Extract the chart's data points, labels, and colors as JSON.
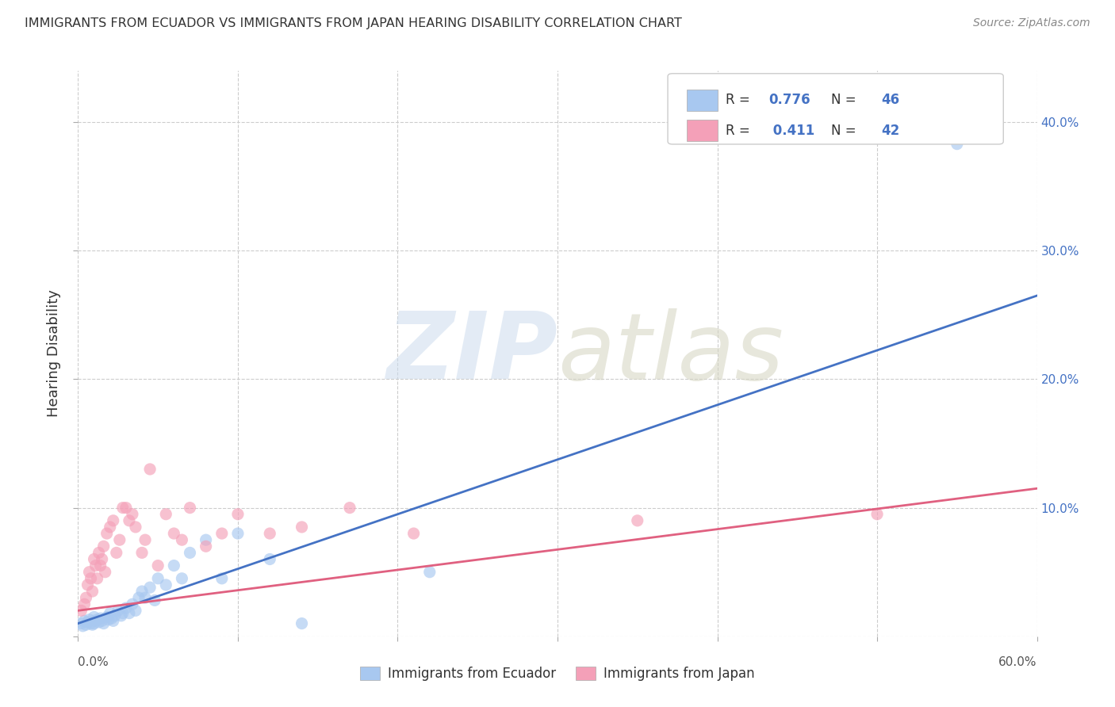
{
  "title": "IMMIGRANTS FROM ECUADOR VS IMMIGRANTS FROM JAPAN HEARING DISABILITY CORRELATION CHART",
  "source": "Source: ZipAtlas.com",
  "ylabel": "Hearing Disability",
  "xlim": [
    0.0,
    0.6
  ],
  "ylim": [
    0.0,
    0.44
  ],
  "xtick_positions": [
    0.0,
    0.1,
    0.2,
    0.3,
    0.4,
    0.5,
    0.6
  ],
  "ytick_positions": [
    0.0,
    0.1,
    0.2,
    0.3,
    0.4
  ],
  "right_yticklabels": [
    "",
    "10.0%",
    "20.0%",
    "30.0%",
    "40.0%"
  ],
  "bottom_xtick_left": "0.0%",
  "bottom_xtick_right": "60.0%",
  "legend_labels_bottom": [
    "Immigrants from Ecuador",
    "Immigrants from Japan"
  ],
  "ecuador_color": "#a8c8f0",
  "japan_color": "#f4a0b8",
  "ecuador_line_color": "#4472c4",
  "japan_line_color": "#e06080",
  "right_tick_color": "#4472c4",
  "background_color": "#ffffff",
  "grid_color": "#cccccc",
  "ecuador_R": "0.776",
  "ecuador_N": "46",
  "japan_R": "0.411",
  "japan_N": "42",
  "ecuador_trend_x": [
    0.0,
    0.6
  ],
  "ecuador_trend_y": [
    0.01,
    0.265
  ],
  "japan_trend_x": [
    0.0,
    0.6
  ],
  "japan_trend_y": [
    0.02,
    0.115
  ],
  "ecuador_x": [
    0.002,
    0.003,
    0.004,
    0.005,
    0.006,
    0.007,
    0.008,
    0.009,
    0.01,
    0.01,
    0.01,
    0.012,
    0.013,
    0.014,
    0.015,
    0.016,
    0.018,
    0.019,
    0.02,
    0.021,
    0.022,
    0.023,
    0.025,
    0.027,
    0.028,
    0.03,
    0.032,
    0.034,
    0.036,
    0.038,
    0.04,
    0.042,
    0.045,
    0.048,
    0.05,
    0.055,
    0.06,
    0.065,
    0.07,
    0.08,
    0.09,
    0.1,
    0.12,
    0.14,
    0.22,
    0.55
  ],
  "ecuador_y": [
    0.01,
    0.008,
    0.012,
    0.009,
    0.011,
    0.013,
    0.01,
    0.009,
    0.015,
    0.012,
    0.01,
    0.013,
    0.011,
    0.014,
    0.012,
    0.01,
    0.015,
    0.013,
    0.018,
    0.014,
    0.012,
    0.016,
    0.02,
    0.016,
    0.018,
    0.022,
    0.018,
    0.025,
    0.02,
    0.03,
    0.035,
    0.03,
    0.038,
    0.028,
    0.045,
    0.04,
    0.055,
    0.045,
    0.065,
    0.075,
    0.045,
    0.08,
    0.06,
    0.01,
    0.05,
    0.383
  ],
  "japan_x": [
    0.002,
    0.004,
    0.005,
    0.006,
    0.007,
    0.008,
    0.009,
    0.01,
    0.011,
    0.012,
    0.013,
    0.014,
    0.015,
    0.016,
    0.017,
    0.018,
    0.02,
    0.022,
    0.024,
    0.026,
    0.028,
    0.03,
    0.032,
    0.034,
    0.036,
    0.04,
    0.042,
    0.045,
    0.05,
    0.055,
    0.06,
    0.065,
    0.07,
    0.08,
    0.09,
    0.1,
    0.12,
    0.14,
    0.17,
    0.21,
    0.35,
    0.5
  ],
  "japan_y": [
    0.02,
    0.025,
    0.03,
    0.04,
    0.05,
    0.045,
    0.035,
    0.06,
    0.055,
    0.045,
    0.065,
    0.055,
    0.06,
    0.07,
    0.05,
    0.08,
    0.085,
    0.09,
    0.065,
    0.075,
    0.1,
    0.1,
    0.09,
    0.095,
    0.085,
    0.065,
    0.075,
    0.13,
    0.055,
    0.095,
    0.08,
    0.075,
    0.1,
    0.07,
    0.08,
    0.095,
    0.08,
    0.085,
    0.1,
    0.08,
    0.09,
    0.095
  ]
}
